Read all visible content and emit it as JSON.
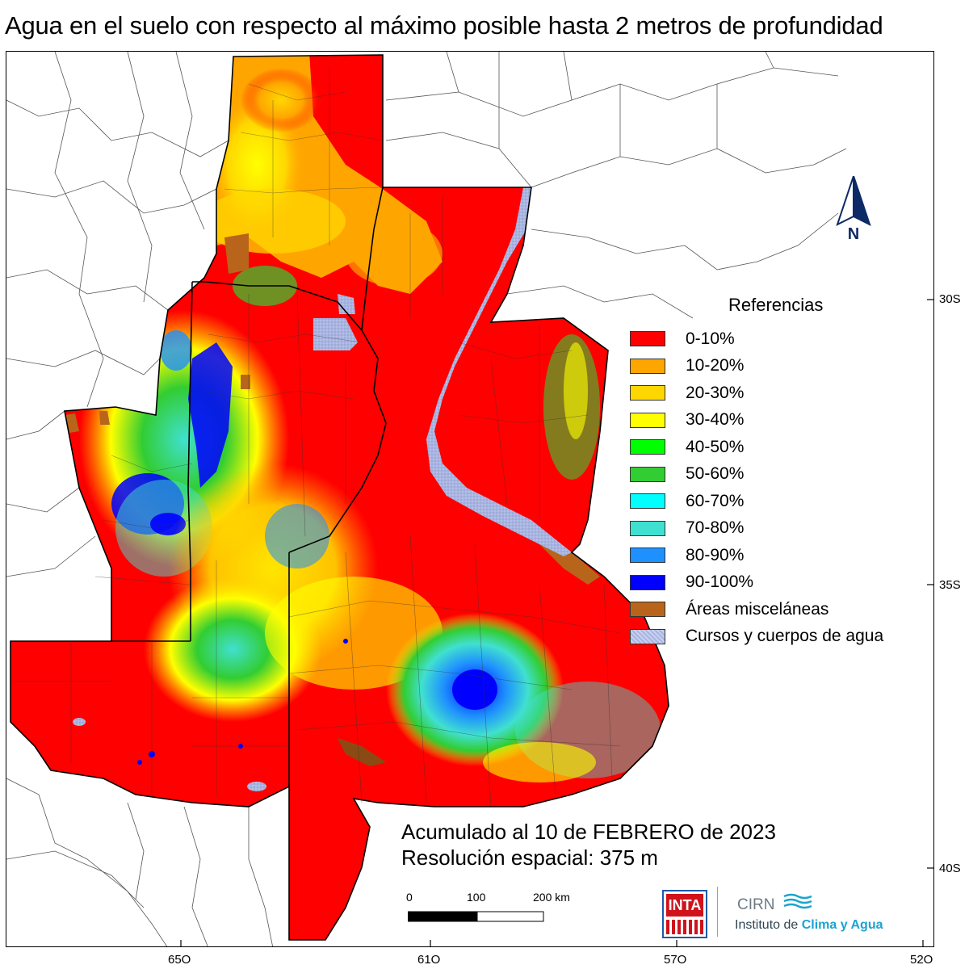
{
  "title": "Agua en el suelo con respecto al máximo posible hasta 2 metros de profundidad",
  "north_label": "N",
  "lat_labels": [
    "30S",
    "35S",
    "40S"
  ],
  "lon_labels": [
    "65O",
    "61O",
    "57O",
    "52O"
  ],
  "legend": {
    "title": "Referencias",
    "items": [
      {
        "label": "0-10%",
        "color": "#ff0000"
      },
      {
        "label": "10-20%",
        "color": "#ffa500"
      },
      {
        "label": "20-30%",
        "color": "#ffd700"
      },
      {
        "label": "30-40%",
        "color": "#ffff00"
      },
      {
        "label": "40-50%",
        "color": "#00ff00"
      },
      {
        "label": "50-60%",
        "color": "#32cd32"
      },
      {
        "label": "60-70%",
        "color": "#00ffff"
      },
      {
        "label": "70-80%",
        "color": "#40e0d0"
      },
      {
        "label": "80-90%",
        "color": "#1e90ff"
      },
      {
        "label": "90-100%",
        "color": "#0000ff"
      },
      {
        "label": "Áreas misceláneas",
        "color": "#b8651b"
      },
      {
        "label": "Cursos y cuerpos de agua",
        "color": "#a8b4e0"
      }
    ]
  },
  "info": {
    "accumulated": "Acumulado al 10 de FEBRERO de 2023",
    "resolution": "Resolución espacial: 375 m"
  },
  "scale_bar": {
    "labels": [
      "0",
      "100",
      "200 km"
    ]
  },
  "logos": {
    "inta": "INTA",
    "cirn": "CIRN",
    "instituto_prefix": "Instituto de ",
    "instituto_highlight": "Clima y Agua"
  },
  "colors": {
    "border": "#000000",
    "admin_lines": "#555555",
    "water": "#a8b4e0"
  }
}
